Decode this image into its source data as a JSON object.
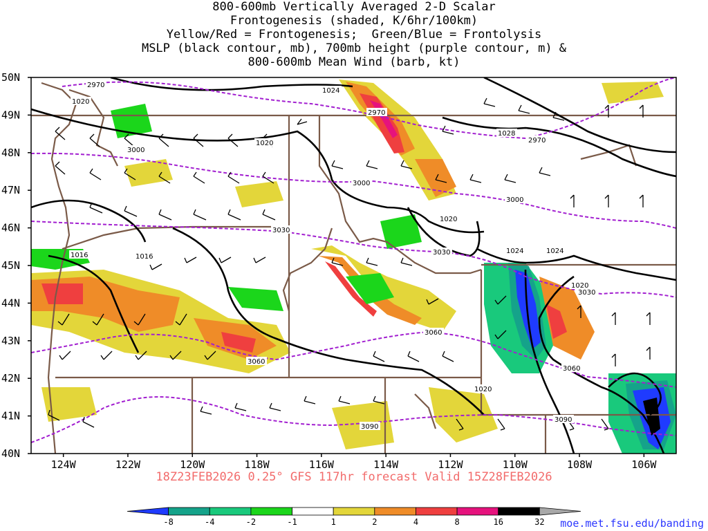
{
  "title": {
    "lines": [
      "800-600mb Vertically Averaged 2-D Scalar",
      "Frontogenesis (shaded, K/6hr/100km)",
      "Yellow/Red = Frontogenesis;  Green/Blue = Frontolysis",
      "MSLP (black contour, mb), 700mb height (purple contour, m) &",
      "800-600mb Mean Wind (barb, kt)"
    ]
  },
  "map": {
    "lat_range": [
      40,
      50
    ],
    "lon_range": [
      -125,
      -105
    ],
    "lat_labels": [
      "40N",
      "41N",
      "42N",
      "43N",
      "44N",
      "45N",
      "46N",
      "47N",
      "48N",
      "49N",
      "50N"
    ],
    "lon_labels": [
      "124W",
      "122W",
      "120W",
      "118W",
      "116W",
      "114W",
      "112W",
      "110W",
      "108W",
      "106W"
    ],
    "mslp_labels": [
      "1024",
      "1020",
      "1020",
      "1016",
      "1016",
      "1028",
      "1020",
      "1024",
      "1024",
      "1020",
      "1020"
    ],
    "height_labels": [
      "2970",
      "2970",
      "2970",
      "3000",
      "3000",
      "3000",
      "3030",
      "3030",
      "3030",
      "3060",
      "3060",
      "3060",
      "3090",
      "3090"
    ],
    "other_labels": [
      "1020"
    ]
  },
  "valid_text": "18Z23FEB2026 0.25° GFS 117hr forecast Valid 15Z28FEB2026",
  "colorbar": {
    "labels": [
      "-8",
      "-4",
      "-2",
      "-1",
      "1",
      "2",
      "4",
      "8",
      "16",
      "32"
    ],
    "colors": [
      "#1f3bff",
      "#15a38a",
      "#19c97c",
      "#1bd61b",
      "#ffffff",
      "#e3d63a",
      "#ef8c28",
      "#ef3f3f",
      "#e6127d",
      "#000000",
      "#a8a8a8"
    ]
  },
  "credit": "moe.met.fsu.edu/banding"
}
